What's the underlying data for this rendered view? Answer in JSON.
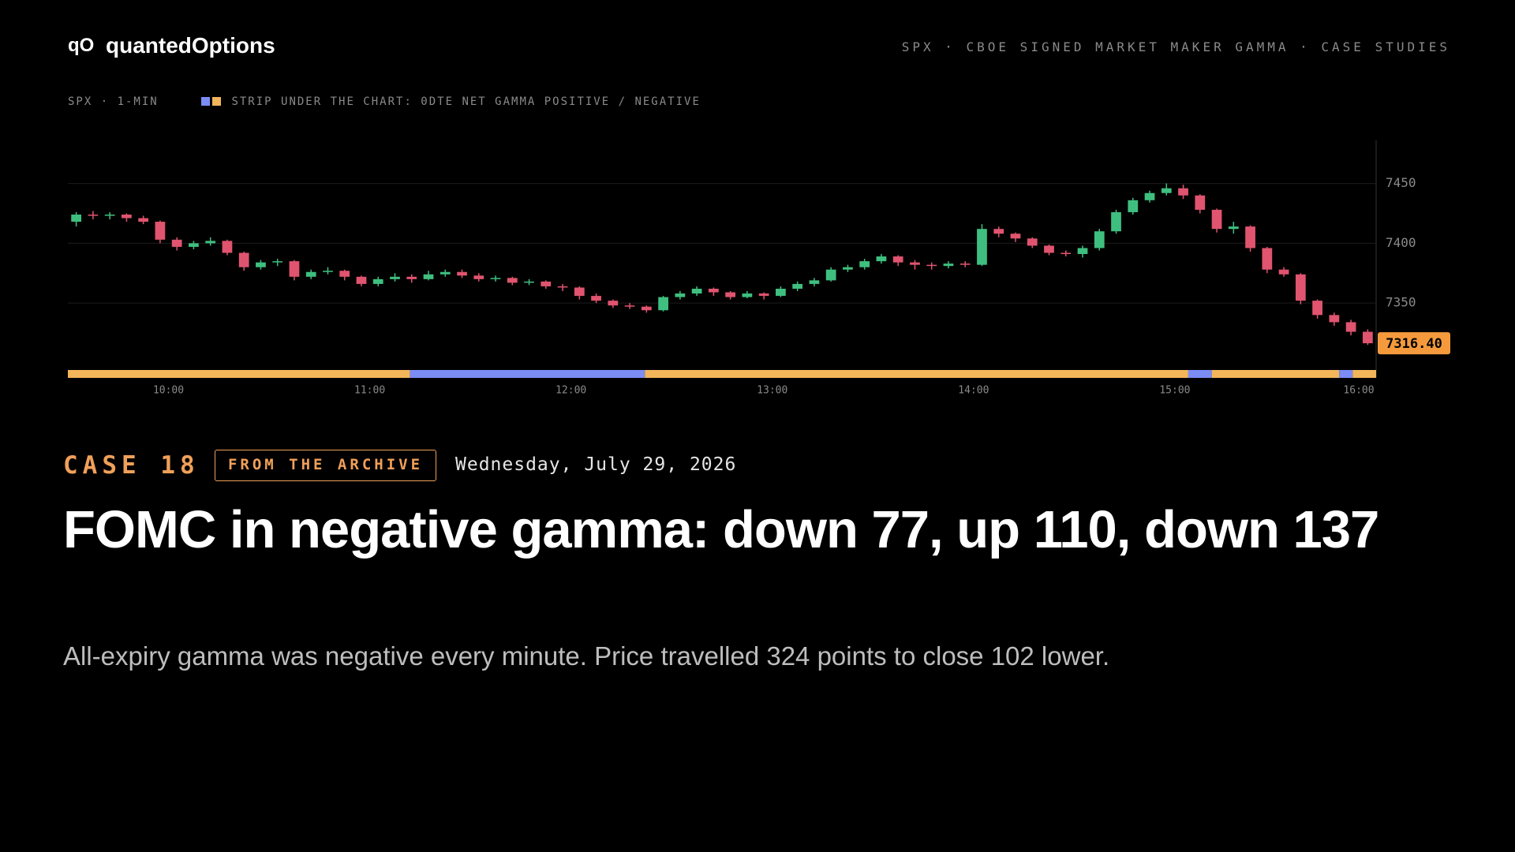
{
  "header": {
    "logo": "qO",
    "brand": "quantedOptions",
    "nav": "SPX · CBOE SIGNED MARKET MAKER GAMMA · CASE STUDIES"
  },
  "chart_data": {
    "type": "candlestick",
    "meta": "SPX · 1-MIN",
    "strip_legend": "STRIP UNDER THE CHART: 0DTE NET GAMMA POSITIVE / NEGATIVE",
    "up_color": "#3fbf7f",
    "down_color": "#e0546f",
    "positive_color": "#7b8cf5",
    "negative_color": "#f2b55a",
    "session": [
      "09:30",
      "16:00"
    ],
    "bar_minutes": 5,
    "x": [
      "09:30",
      "09:35",
      "09:40",
      "09:45",
      "09:50",
      "09:55",
      "10:00",
      "10:05",
      "10:10",
      "10:15",
      "10:20",
      "10:25",
      "10:30",
      "10:35",
      "10:40",
      "10:45",
      "10:50",
      "10:55",
      "11:00",
      "11:05",
      "11:10",
      "11:15",
      "11:20",
      "11:25",
      "11:30",
      "11:35",
      "11:40",
      "11:45",
      "11:50",
      "11:55",
      "12:00",
      "12:05",
      "12:10",
      "12:15",
      "12:20",
      "12:25",
      "12:30",
      "12:35",
      "12:40",
      "12:45",
      "12:50",
      "12:55",
      "13:00",
      "13:05",
      "13:10",
      "13:15",
      "13:20",
      "13:25",
      "13:30",
      "13:35",
      "13:40",
      "13:45",
      "13:50",
      "13:55",
      "14:00",
      "14:05",
      "14:10",
      "14:15",
      "14:20",
      "14:25",
      "14:30",
      "14:35",
      "14:40",
      "14:45",
      "14:50",
      "14:55",
      "15:00",
      "15:05",
      "15:10",
      "15:15",
      "15:20",
      "15:25",
      "15:30",
      "15:35",
      "15:40",
      "15:45",
      "15:50",
      "15:55"
    ],
    "open": [
      7418,
      7424,
      7423,
      7424,
      7421,
      7418,
      7403,
      7397,
      7400,
      7402,
      7392,
      7380,
      7384,
      7385,
      7372,
      7376,
      7377,
      7372,
      7366,
      7370,
      7372,
      7370,
      7374,
      7376,
      7373,
      7370,
      7371,
      7367,
      7368,
      7364,
      7363,
      7356,
      7352,
      7348,
      7347,
      7344,
      7355,
      7358,
      7362,
      7359,
      7355,
      7358,
      7356,
      7362,
      7366,
      7369,
      7378,
      7380,
      7385,
      7389,
      7384,
      7382,
      7381,
      7383,
      7382,
      7412,
      7408,
      7404,
      7398,
      7392,
      7391,
      7396,
      7410,
      7426,
      7436,
      7442,
      7446,
      7440,
      7428,
      7412,
      7414,
      7396,
      7378,
      7374,
      7352,
      7340,
      7334,
      7326
    ],
    "high": [
      7426,
      7427,
      7426,
      7425,
      7423,
      7419,
      7405,
      7402,
      7405,
      7403,
      7393,
      7386,
      7387,
      7386,
      7378,
      7380,
      7378,
      7373,
      7372,
      7375,
      7374,
      7377,
      7378,
      7378,
      7375,
      7373,
      7372,
      7370,
      7369,
      7366,
      7364,
      7358,
      7353,
      7350,
      7348,
      7356,
      7360,
      7364,
      7363,
      7360,
      7360,
      7359,
      7364,
      7368,
      7371,
      7380,
      7382,
      7387,
      7391,
      7390,
      7386,
      7384,
      7385,
      7385,
      7416,
      7414,
      7409,
      7405,
      7399,
      7394,
      7398,
      7412,
      7428,
      7438,
      7444,
      7450,
      7449,
      7441,
      7429,
      7418,
      7415,
      7397,
      7380,
      7375,
      7353,
      7342,
      7336,
      7328
    ],
    "low": [
      7414,
      7420,
      7420,
      7418,
      7416,
      7400,
      7394,
      7395,
      7398,
      7390,
      7377,
      7378,
      7381,
      7369,
      7370,
      7374,
      7369,
      7364,
      7364,
      7368,
      7367,
      7369,
      7372,
      7371,
      7368,
      7368,
      7365,
      7365,
      7362,
      7360,
      7353,
      7350,
      7346,
      7345,
      7342,
      7343,
      7353,
      7356,
      7356,
      7353,
      7354,
      7353,
      7355,
      7360,
      7364,
      7368,
      7376,
      7378,
      7383,
      7381,
      7378,
      7378,
      7379,
      7380,
      7381,
      7405,
      7401,
      7396,
      7390,
      7389,
      7388,
      7394,
      7408,
      7424,
      7434,
      7440,
      7437,
      7425,
      7409,
      7408,
      7393,
      7375,
      7372,
      7349,
      7337,
      7331,
      7323,
      7315
    ],
    "close": [
      7424,
      7423,
      7424,
      7421,
      7418,
      7403,
      7397,
      7400,
      7402,
      7392,
      7380,
      7384,
      7385,
      7372,
      7376,
      7377,
      7372,
      7366,
      7370,
      7372,
      7370,
      7374,
      7376,
      7373,
      7370,
      7371,
      7367,
      7368,
      7364,
      7363,
      7356,
      7352,
      7348,
      7347,
      7344,
      7355,
      7358,
      7362,
      7359,
      7355,
      7358,
      7356,
      7362,
      7366,
      7369,
      7378,
      7380,
      7385,
      7389,
      7384,
      7382,
      7381,
      7383,
      7382,
      7412,
      7408,
      7404,
      7398,
      7392,
      7391,
      7396,
      7410,
      7426,
      7436,
      7442,
      7446,
      7440,
      7428,
      7412,
      7414,
      7396,
      7378,
      7374,
      7352,
      7340,
      7334,
      7326,
      7316.4
    ],
    "ylim": [
      7298,
      7486
    ],
    "yticks": [
      7350,
      7400,
      7450
    ],
    "xticks": [
      "10:00",
      "11:00",
      "12:00",
      "13:00",
      "14:00",
      "15:00",
      "16:00"
    ],
    "last_price": {
      "value": 7316.4,
      "label": "7316.40"
    },
    "strip": [
      {
        "start": "09:30",
        "end": "11:12",
        "gamma": "negative"
      },
      {
        "start": "11:12",
        "end": "12:22",
        "gamma": "positive"
      },
      {
        "start": "12:22",
        "end": "15:04",
        "gamma": "negative"
      },
      {
        "start": "15:04",
        "end": "15:11",
        "gamma": "positive"
      },
      {
        "start": "15:11",
        "end": "15:49",
        "gamma": "negative"
      },
      {
        "start": "15:49",
        "end": "15:53",
        "gamma": "positive"
      },
      {
        "start": "15:53",
        "end": "16:00",
        "gamma": "negative"
      }
    ]
  },
  "case": {
    "number": "CASE 18",
    "badge": "FROM THE ARCHIVE",
    "date": "Wednesday, July 29, 2026",
    "title": "FOMC in negative gamma: down 77, up 110, down 137",
    "subtitle": "All-expiry gamma was negative every minute. Price travelled 324 points to close 102 lower."
  }
}
